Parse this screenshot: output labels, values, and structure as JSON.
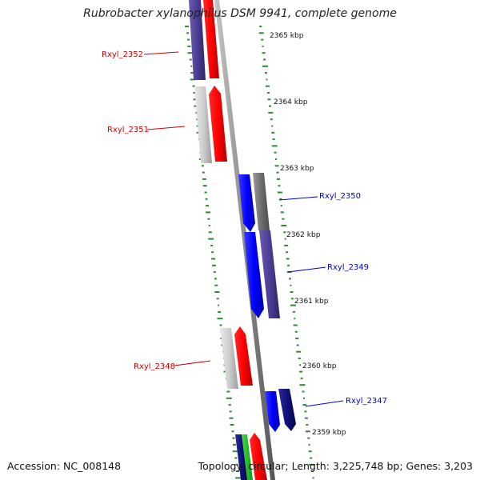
{
  "title": "Rubrobacter xylanophilus DSM 9941, complete genome",
  "accession": "Accession: NC_008148",
  "topology": "Topology: circular; Length: 3,225,748 bp; Genes: 3,203",
  "colors": {
    "forward_label": "#cc0000",
    "reverse_label": "#0000cc",
    "gc_tick": "#2e8b2e",
    "backbone": "#8a8a8a"
  },
  "kbp_labels": [
    "2365 kbp",
    "2364 kbp",
    "2363 kbp",
    "2362 kbp",
    "2361 kbp",
    "2360 kbp",
    "2359 kbp"
  ],
  "gene_labels": {
    "rxyl_2352": "Rxyl_2352",
    "rxyl_2351": "Rxyl_2351",
    "rxyl_2350": "Rxyl_2350",
    "rxyl_2349": "Rxyl_2349",
    "rxyl_2348": "Rxyl_2348",
    "rxyl_2347": "Rxyl_2347"
  }
}
